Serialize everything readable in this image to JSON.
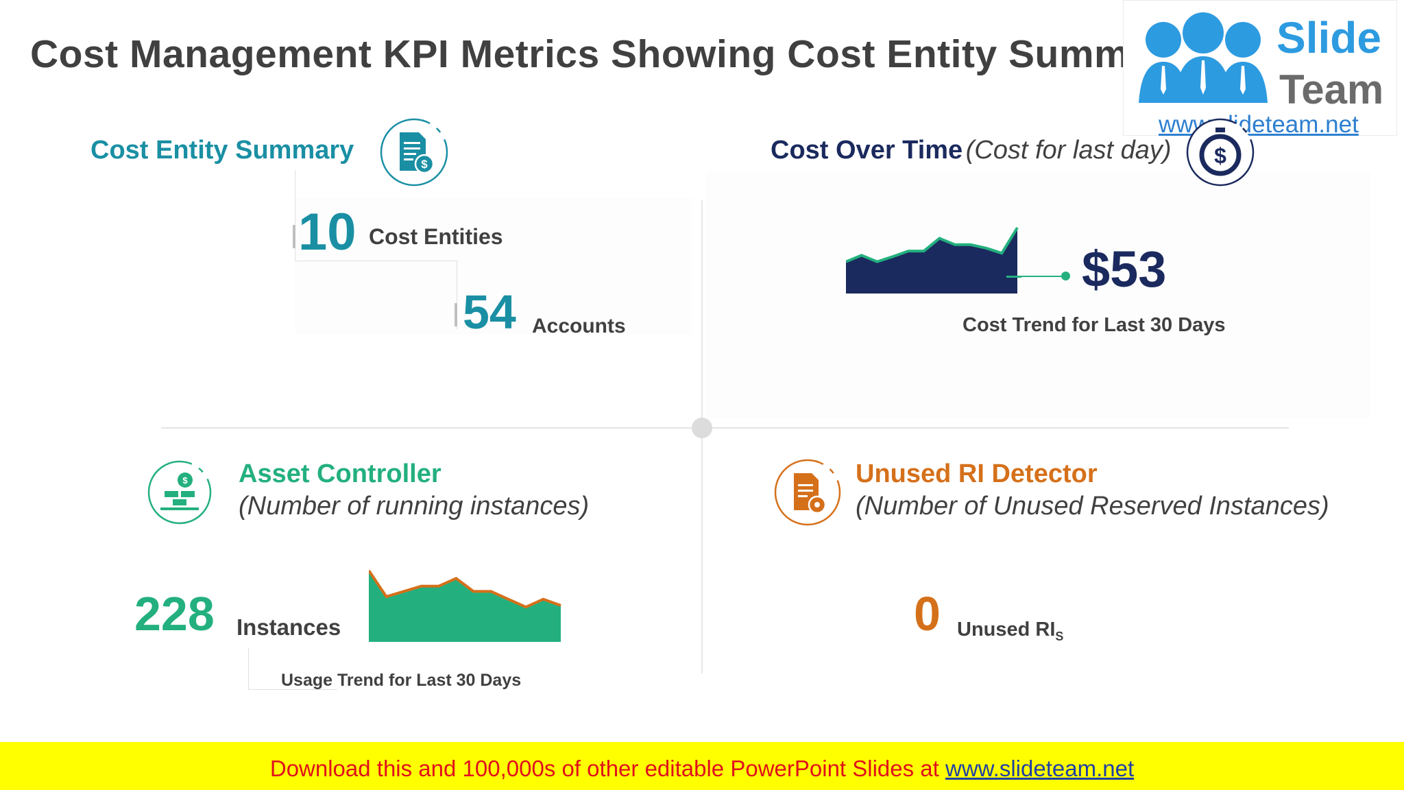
{
  "title": "Cost Management KPI Metrics Showing Cost Entity Summary",
  "logo": {
    "slide": "Slide",
    "team": "Team",
    "url": "www.slideteam.net"
  },
  "cost_entity_summary": {
    "title": "Cost Entity Summary",
    "icon": "document-dollar-icon",
    "color": "#1a8fa4",
    "entities_value": "10",
    "entities_label": "Cost Entities",
    "accounts_value": "54",
    "accounts_label": "Accounts"
  },
  "cost_over_time": {
    "title": "Cost Over Time",
    "subtitle": "(Cost for last day)",
    "icon": "stopwatch-dollar-icon",
    "color": "#1b2a5e",
    "value": "$53",
    "trend_label": "Cost Trend for Last 30 Days",
    "sparkline": [
      0.2,
      0.35,
      0.2,
      0.32,
      0.45,
      0.45,
      0.75,
      0.6,
      0.6,
      0.52,
      0.4,
      1.0
    ]
  },
  "asset_controller": {
    "title": "Asset Controller",
    "subtitle": "(Number of running instances)",
    "icon": "coins-stack-icon",
    "color": "#23b07e",
    "value": "228",
    "value_label": "Instances",
    "trend_label": "Usage Trend for Last 30 Days",
    "sparkline": [
      1.0,
      0.5,
      0.6,
      0.7,
      0.7,
      0.85,
      0.6,
      0.6,
      0.45,
      0.3,
      0.45,
      0.33
    ]
  },
  "unused_ri_detector": {
    "title": "Unused RI Detector",
    "subtitle": "(Number of Unused Reserved Instances)",
    "icon": "document-gear-icon",
    "color": "#d5701a",
    "value": "0",
    "value_label": "Unused RI",
    "value_label_sub": "S"
  },
  "footer": {
    "text": "Download this and 100,000s of other editable PowerPoint Slides at ",
    "link": "www.slideteam.net"
  }
}
